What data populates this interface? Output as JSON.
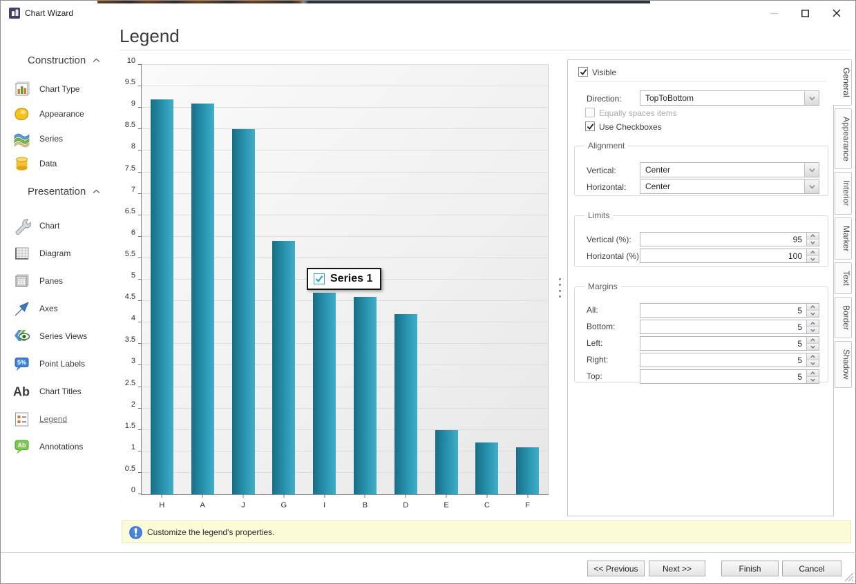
{
  "window": {
    "title": "Chart Wizard"
  },
  "sidebar": {
    "sections": [
      {
        "label": "Construction",
        "items": [
          {
            "label": "Chart Type",
            "icon": "chart-type-icon",
            "selected": false
          },
          {
            "label": "Appearance",
            "icon": "appearance-icon",
            "selected": false
          },
          {
            "label": "Series",
            "icon": "series-icon",
            "selected": false
          },
          {
            "label": "Data",
            "icon": "data-icon",
            "selected": false
          }
        ]
      },
      {
        "label": "Presentation",
        "items": [
          {
            "label": "Chart",
            "icon": "chart-icon",
            "selected": false
          },
          {
            "label": "Diagram",
            "icon": "diagram-icon",
            "selected": false
          },
          {
            "label": "Panes",
            "icon": "panes-icon",
            "selected": false
          },
          {
            "label": "Axes",
            "icon": "axes-icon",
            "selected": false
          },
          {
            "label": "Series Views",
            "icon": "series-views-icon",
            "selected": false
          },
          {
            "label": "Point Labels",
            "icon": "point-labels-icon",
            "selected": false
          },
          {
            "label": "Chart Titles",
            "icon": "chart-titles-icon",
            "selected": false
          },
          {
            "label": "Legend",
            "icon": "legend-icon",
            "selected": true
          },
          {
            "label": "Annotations",
            "icon": "annotations-icon",
            "selected": false
          }
        ]
      }
    ]
  },
  "header": {
    "title": "Legend"
  },
  "chart_data": {
    "type": "bar",
    "categories": [
      "H",
      "A",
      "J",
      "G",
      "I",
      "B",
      "D",
      "E",
      "C",
      "F"
    ],
    "values": [
      9.2,
      9.1,
      8.5,
      5.9,
      4.7,
      4.6,
      4.2,
      1.5,
      1.2,
      1.1
    ],
    "series": [
      {
        "name": "Series 1",
        "checked": true
      }
    ],
    "title": "",
    "xlabel": "",
    "ylabel": "",
    "ylim": [
      0,
      10
    ],
    "ytick_step": 0.5,
    "grid": true,
    "legend_position": "center-overlay",
    "bar_color_dark": "#196d85",
    "bar_color_light": "#41aec8"
  },
  "panel": {
    "visible_label": "Visible",
    "direction_label": "Direction:",
    "direction_value": "TopToBottom",
    "equally_label": "Equally spaces items",
    "use_checkboxes_label": "Use Checkboxes",
    "alignment": {
      "title": "Alignment",
      "vertical_label": "Vertical:",
      "vertical_value": "Center",
      "horizontal_label": "Horizontal:",
      "horizontal_value": "Center"
    },
    "limits": {
      "title": "Limits",
      "vertical_label": "Vertical (%):",
      "vertical_value": "95",
      "horizontal_label": "Horizontal (%):",
      "horizontal_value": "100"
    },
    "margins": {
      "title": "Margins",
      "rows": [
        {
          "label": "All:",
          "value": "5"
        },
        {
          "label": "Bottom:",
          "value": "5"
        },
        {
          "label": "Left:",
          "value": "5"
        },
        {
          "label": "Right:",
          "value": "5"
        },
        {
          "label": "Top:",
          "value": "5"
        }
      ]
    }
  },
  "tabs": [
    {
      "label": "General",
      "active": true
    },
    {
      "label": "Appearance",
      "active": false
    },
    {
      "label": "Interior",
      "active": false
    },
    {
      "label": "Marker",
      "active": false
    },
    {
      "label": "Text",
      "active": false
    },
    {
      "label": "Border",
      "active": false
    },
    {
      "label": "Shadow",
      "active": false
    }
  ],
  "statusbar": {
    "message": "Customize the legend's properties."
  },
  "footer": {
    "previous": "<< Previous",
    "next": "Next >>",
    "finish": "Finish",
    "cancel": "Cancel"
  },
  "colors": {
    "bar_dark": "#196d85",
    "bar_light": "#41aec8",
    "legend_check": "#35a3bd",
    "statusbar_bg": "#fbfbd7"
  }
}
